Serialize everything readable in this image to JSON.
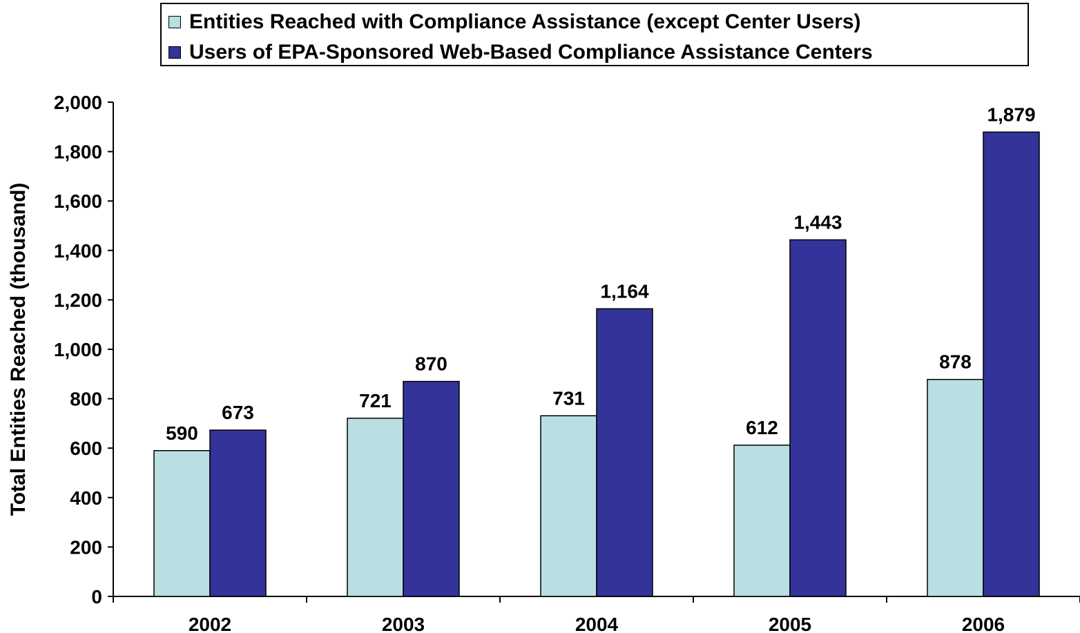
{
  "chart_data": {
    "type": "bar",
    "title": "",
    "xlabel": "",
    "ylabel": "Total Entities Reached (thousand)",
    "ylim": [
      0,
      2000
    ],
    "yticks": [
      0,
      200,
      400,
      600,
      800,
      1000,
      1200,
      1400,
      1600,
      1800,
      2000
    ],
    "ytick_labels": [
      "0",
      "200",
      "400",
      "600",
      "800",
      "1,000",
      "1,200",
      "1,400",
      "1,600",
      "1,800",
      "2,000"
    ],
    "categories": [
      "2002",
      "2003",
      "2004",
      "2005",
      "2006"
    ],
    "series": [
      {
        "name": "Entities Reached with Compliance Assistance (except Center Users)",
        "color": "#b9dfe3",
        "values": [
          590,
          721,
          731,
          612,
          878
        ],
        "labels": [
          "590",
          "721",
          "731",
          "612",
          "878"
        ]
      },
      {
        "name": "Users of EPA-Sponsored Web-Based Compliance Assistance Centers",
        "color": "#333399",
        "values": [
          673,
          870,
          1164,
          1443,
          1879
        ],
        "labels": [
          "673",
          "870",
          "1,164",
          "1,443",
          "1,879"
        ]
      }
    ],
    "legend_position": "top",
    "grid": false
  }
}
